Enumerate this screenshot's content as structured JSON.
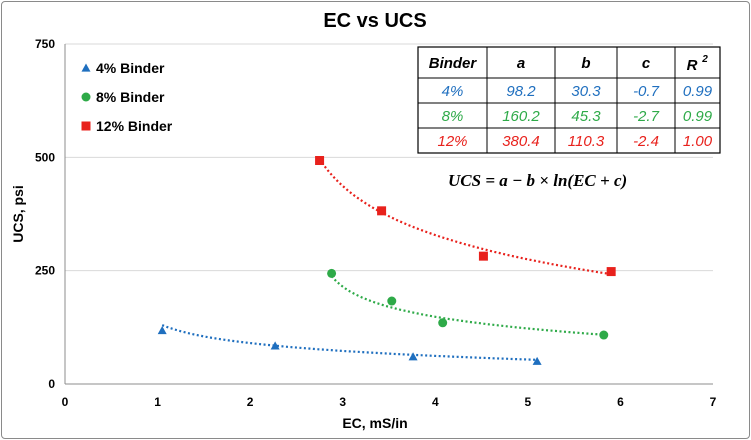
{
  "chart_data": {
    "type": "scatter",
    "title": "EC vs UCS",
    "xlabel": "EC, mS/in",
    "ylabel": "UCS, psi",
    "xlim": [
      0,
      7
    ],
    "ylim": [
      0,
      750
    ],
    "xticks": [
      "0",
      "1",
      "2",
      "3",
      "4",
      "5",
      "6",
      "7"
    ],
    "yticks": [
      "0",
      "250",
      "500",
      "750"
    ],
    "grid": "horizontal",
    "legend_position": "top-left",
    "series": [
      {
        "name": "4% Binder",
        "color": "#1f6fbf",
        "marker": "triangle",
        "x": [
          1.05,
          2.27,
          3.76,
          5.1
        ],
        "y": [
          118,
          84,
          60,
          50
        ],
        "fit": {
          "a": 98.2,
          "b": 30.3,
          "c": -0.7,
          "x_range": [
            1.05,
            5.1
          ]
        }
      },
      {
        "name": "8% Binder",
        "color": "#2eaa48",
        "marker": "circle",
        "x": [
          2.88,
          3.53,
          4.08,
          5.82
        ],
        "y": [
          244,
          183,
          135,
          108
        ],
        "fit": {
          "a": 160.2,
          "b": 45.3,
          "c": -2.7,
          "x_range": [
            2.88,
            5.82
          ]
        }
      },
      {
        "name": "12% Binder",
        "color": "#e8211c",
        "marker": "square",
        "x": [
          2.75,
          3.42,
          4.52,
          5.9
        ],
        "y": [
          493,
          382,
          282,
          248
        ],
        "fit": {
          "a": 380.4,
          "b": 110.3,
          "c": -2.4,
          "x_range": [
            2.75,
            5.9
          ]
        }
      }
    ],
    "table": {
      "headers": [
        "Binder",
        "a",
        "b",
        "c",
        "R",
        "2"
      ],
      "rows": [
        {
          "cells": [
            "4%",
            "98.2",
            "30.3",
            "-0.7",
            "0.99"
          ],
          "color": "#1f6fbf"
        },
        {
          "cells": [
            "8%",
            "160.2",
            "45.3",
            "-2.7",
            "0.99"
          ],
          "color": "#2eaa48"
        },
        {
          "cells": [
            "12%",
            "380.4",
            "110.3",
            "-2.4",
            "1.00"
          ],
          "color": "#e8211c"
        }
      ]
    },
    "equation": "UCS = a − b × ln(EC + c)"
  }
}
